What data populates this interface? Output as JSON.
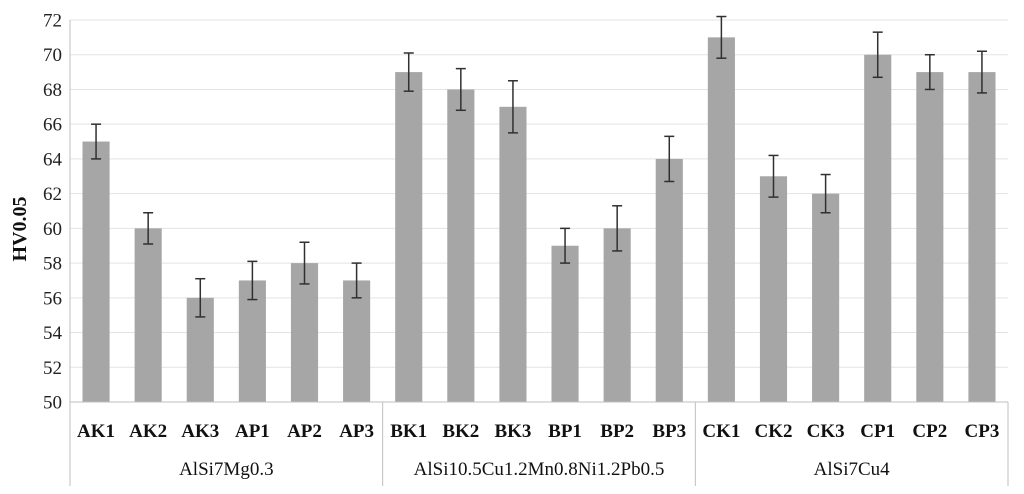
{
  "chart_data": {
    "type": "bar",
    "ylabel": "HV0.05",
    "xlabel": "",
    "ylim": [
      50,
      72
    ],
    "yticks": [
      50,
      52,
      54,
      56,
      58,
      60,
      62,
      64,
      66,
      68,
      70,
      72
    ],
    "grid": true,
    "bar_color": "#a6a6a6",
    "categories": [
      "AK1",
      "AK2",
      "AK3",
      "AP1",
      "AP2",
      "AP3",
      "BK1",
      "BK2",
      "BK3",
      "BP1",
      "BP2",
      "BP3",
      "CK1",
      "CK2",
      "CK3",
      "CP1",
      "CP2",
      "CP3"
    ],
    "values": [
      65,
      60,
      56,
      57,
      58,
      57,
      69,
      68,
      67,
      59,
      60,
      64,
      71,
      63,
      62,
      70,
      69,
      69
    ],
    "errors": [
      1.0,
      0.9,
      1.1,
      1.1,
      1.2,
      1.0,
      1.1,
      1.2,
      1.5,
      1.0,
      1.3,
      1.3,
      1.2,
      1.2,
      1.1,
      1.3,
      1.0,
      1.2
    ],
    "groups": [
      {
        "label": "AlSi7Mg0.3",
        "start": 0,
        "end": 5
      },
      {
        "label": "AlSi10.5Cu1.2Mn0.8Ni1.2Pb0.5",
        "start": 6,
        "end": 11
      },
      {
        "label": "AlSi7Cu4",
        "start": 12,
        "end": 17
      }
    ]
  }
}
